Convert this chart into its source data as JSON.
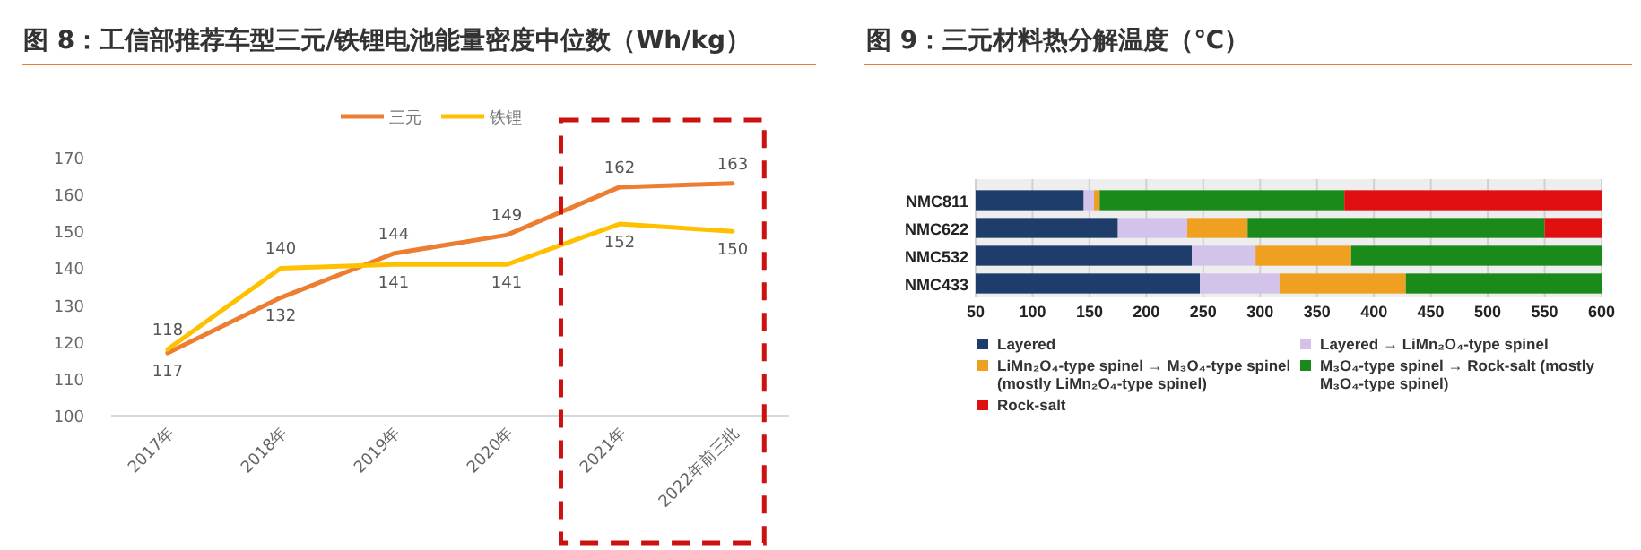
{
  "chart_data": [
    {
      "type": "line",
      "title": "图 8：工信部推荐车型三元/铁锂电池能量密度中位数（Wh/kg）",
      "categories": [
        "2017年",
        "2018年",
        "2019年",
        "2020年",
        "2021年",
        "2022年前三批"
      ],
      "series": [
        {
          "name": "三元",
          "color": "#ed7d31",
          "values": [
            117,
            132,
            144,
            149,
            162,
            163
          ]
        },
        {
          "name": "铁锂",
          "color": "#ffc000",
          "values": [
            118,
            140,
            141,
            141,
            152,
            150
          ]
        }
      ],
      "ylim": [
        100,
        170
      ],
      "yticks": [
        100,
        110,
        120,
        130,
        140,
        150,
        160,
        170
      ],
      "data_labels": true,
      "legend": "top",
      "grid": false,
      "marker": "none",
      "line_style": "solid"
    },
    {
      "type": "bar",
      "title": "图 9：三元材料热分解温度（℃）",
      "orientation": "horizontal",
      "categories": [
        "NMC811",
        "NMC622",
        "NMC532",
        "NMC433"
      ],
      "series": [
        {
          "name": "Layered",
          "color": "#1f3d6b",
          "base": [
            50,
            50,
            50,
            50
          ],
          "values": [
            95,
            125,
            190,
            197
          ]
        },
        {
          "name": "Layered → LiMn₂O₄-type spinel",
          "color": "#d3c3ea",
          "base": [
            145,
            175,
            240,
            247
          ],
          "values": [
            9,
            61,
            56,
            70
          ]
        },
        {
          "name": "LiMn₂O₄-type spinel → M₃O₄-type spinel (mostly LiMn₂O₄-type spinel)",
          "color": "#f0a020",
          "base": [
            154,
            236,
            296,
            317
          ],
          "values": [
            5,
            53,
            84,
            111
          ]
        },
        {
          "name": "M₃O₄-type spinel → Rock-salt (mostly M₃O₄-type spinel)",
          "color": "#1a8a1a",
          "base": [
            159,
            289,
            380,
            428
          ],
          "values": [
            215,
            261,
            220,
            172
          ]
        },
        {
          "name": "Rock-salt",
          "color": "#e01010",
          "base": [
            374,
            550,
            null,
            null
          ],
          "values": [
            226,
            50,
            null,
            null
          ]
        }
      ],
      "xlim": [
        50,
        600
      ],
      "xticks": [
        50,
        100,
        150,
        200,
        250,
        300,
        350,
        400,
        450,
        500,
        550,
        600
      ],
      "grid": "x",
      "legend": "bottom"
    }
  ]
}
